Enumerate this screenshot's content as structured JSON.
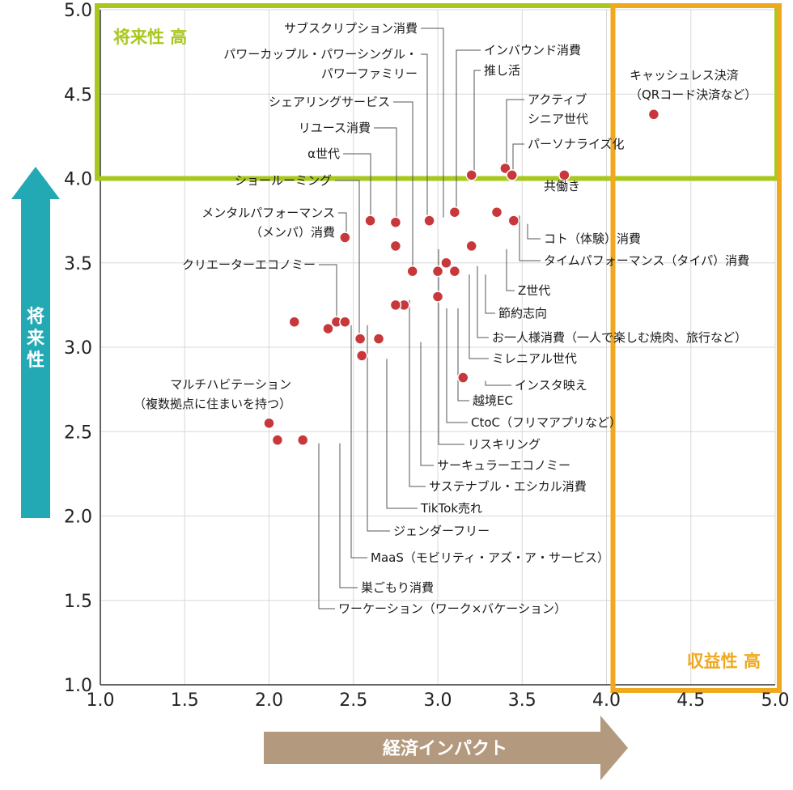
{
  "chart_data": {
    "type": "scatter",
    "xlabel": "経済インパクト",
    "ylabel": "将来性",
    "xlim": [
      1.0,
      5.0
    ],
    "ylim": [
      1.0,
      5.0
    ],
    "x_ticks": [
      "1.0",
      "1.5",
      "2.0",
      "2.5",
      "3.0",
      "3.5",
      "4.0",
      "4.5",
      "5.0"
    ],
    "y_ticks": [
      "1.0",
      "1.5",
      "2.0",
      "2.5",
      "3.0",
      "3.5",
      "4.0",
      "4.5",
      "5.0"
    ],
    "grid": true,
    "zones": {
      "future_high": {
        "label": "将来性 高",
        "color": "#a8c81e",
        "from_y": 4.0
      },
      "profit_high": {
        "label": "収益性 高",
        "color": "#f0a81e",
        "from_x": 4.0
      }
    },
    "point_color": "#c8373a",
    "arrow_colors": {
      "y": "#22a9b3",
      "x": "#b39a7e"
    },
    "points": [
      {
        "label": [
          "サブスクリプション消費"
        ],
        "x": 2.95,
        "y": 3.75
      },
      {
        "label": [
          "パワーカップル・パワーシングル・",
          "パワーファミリー"
        ],
        "x": 2.95,
        "y": 3.75
      },
      {
        "label": [
          "インバウンド消費"
        ],
        "x": 3.1,
        "y": 3.8
      },
      {
        "label": [
          "推し活"
        ],
        "x": 3.2,
        "y": 4.02
      },
      {
        "label": [
          "キャッシュレス決済",
          "（QRコード決済など）"
        ],
        "x": 4.28,
        "y": 4.38
      },
      {
        "label": [
          "アクティブ",
          "シニア世代"
        ],
        "x": 3.4,
        "y": 4.06
      },
      {
        "label": [
          "パーソナライズ化"
        ],
        "x": 3.44,
        "y": 4.02
      },
      {
        "label": [
          "共働き"
        ],
        "x": 3.75,
        "y": 4.02
      },
      {
        "label": [
          "シェアリングサービス"
        ],
        "x": 2.85,
        "y": 3.45
      },
      {
        "label": [
          "リユース消費"
        ],
        "x": 2.75,
        "y": 3.74
      },
      {
        "label": [
          "α世代"
        ],
        "x": 2.6,
        "y": 3.75
      },
      {
        "label": [
          "ショールーミング"
        ],
        "x": 2.54,
        "y": 3.05
      },
      {
        "label": [
          "メンタルパフォーマンス",
          "（メンパ）消費"
        ],
        "x": 2.45,
        "y": 3.65
      },
      {
        "label": [
          "クリエーターエコノミー"
        ],
        "x": 2.4,
        "y": 3.15
      },
      {
        "label": [
          "コト（体験）消費"
        ],
        "x": 3.45,
        "y": 3.75
      },
      {
        "label": [
          "タイムパフォーマンス（タイパ）消費"
        ],
        "x": 3.35,
        "y": 3.8
      },
      {
        "label": [
          "Z世代"
        ],
        "x": 3.2,
        "y": 3.6
      },
      {
        "label": [
          "節約志向"
        ],
        "x": 3.1,
        "y": 3.45
      },
      {
        "label": [
          "お一人様消費（一人で楽しむ焼肉、旅行など）"
        ],
        "x": 3.05,
        "y": 3.5
      },
      {
        "label": [
          "ミレニアル世代"
        ],
        "x": 3.0,
        "y": 3.45
      },
      {
        "label": [
          "インスタ映え"
        ],
        "x": 3.15,
        "y": 2.82
      },
      {
        "label": [
          "越境EC"
        ],
        "x": 2.8,
        "y": 3.25
      },
      {
        "label": [
          "CtoC（フリマアプリなど）"
        ],
        "x": 2.75,
        "y": 3.25
      },
      {
        "label": [
          "リスキリング"
        ],
        "x": 2.75,
        "y": 3.6
      },
      {
        "label": [
          "サーキュラーエコノミー"
        ],
        "x": 2.65,
        "y": 3.05
      },
      {
        "label": [
          "サステナブル・エシカル消費"
        ],
        "x": 3.0,
        "y": 3.3
      },
      {
        "label": [
          "TikTok売れ"
        ],
        "x": 2.55,
        "y": 2.95
      },
      {
        "label": [
          "ジェンダーフリー"
        ],
        "x": 2.15,
        "y": 3.15
      },
      {
        "label": [
          "MaaS（モビリティ・アズ・ア・サービス）"
        ],
        "x": 2.45,
        "y": 3.15
      },
      {
        "label": [
          "マルチハビテーション",
          "（複数拠点に住まいを持つ）"
        ],
        "x": 2.0,
        "y": 2.55
      },
      {
        "label": [
          "巣ごもり消費"
        ],
        "x": 2.2,
        "y": 2.45
      },
      {
        "label": [
          "ワーケーション（ワーク×バケーション）"
        ],
        "x": 2.05,
        "y": 2.45
      },
      {
        "label": [],
        "x": 2.35,
        "y": 3.11
      }
    ]
  }
}
